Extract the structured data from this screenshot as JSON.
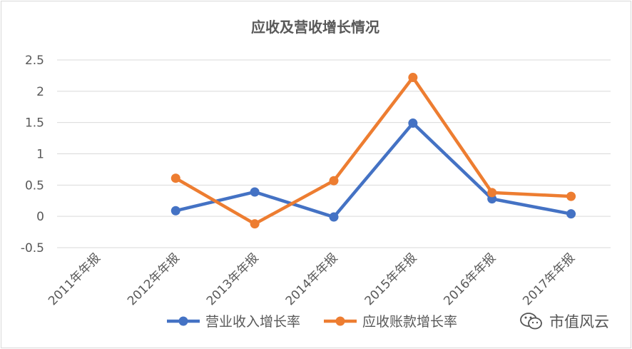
{
  "colors": {
    "blue": "#4472C4",
    "orange": "#ED7D31",
    "grid": "#D9D9D9",
    "text": "#595959"
  },
  "watermark": {
    "text": "市值风云",
    "icon": "wechat-icon"
  },
  "chart_data": {
    "type": "line",
    "title": "应收及营收增长情况",
    "categories": [
      "2011年年报",
      "2012年年报",
      "2013年年报",
      "2014年年报",
      "2015年年报",
      "2016年年报",
      "2017年年报"
    ],
    "series": [
      {
        "name": "营业收入增长率",
        "color": "#4472C4",
        "values": [
          null,
          0.09,
          0.39,
          -0.01,
          1.49,
          0.28,
          0.04
        ]
      },
      {
        "name": "应收账款增长率",
        "color": "#ED7D31",
        "values": [
          null,
          0.61,
          -0.12,
          0.57,
          2.22,
          0.38,
          0.32
        ]
      }
    ],
    "yticks": [
      "-0.5",
      "0",
      "0.5",
      "1",
      "1.5",
      "2",
      "2.5"
    ],
    "ylim": [
      -0.5,
      2.5
    ],
    "grid": true,
    "legend": "bottom"
  }
}
